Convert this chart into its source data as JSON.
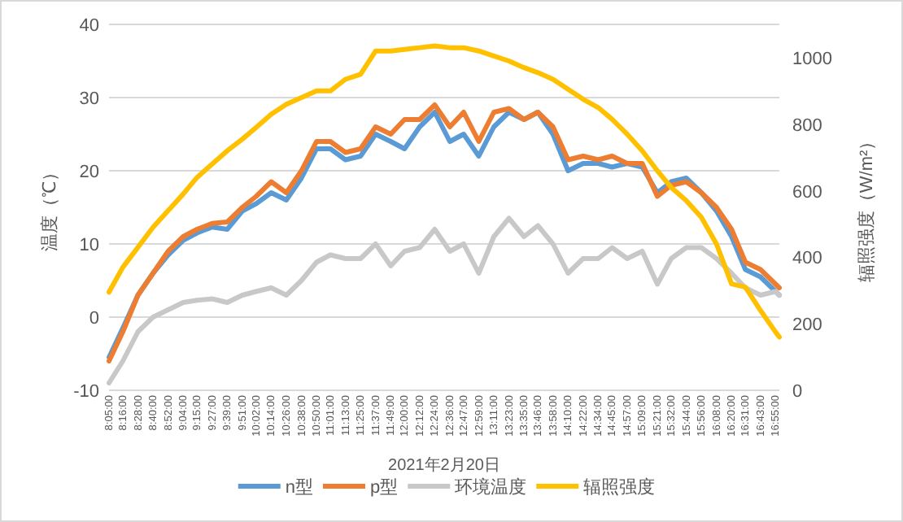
{
  "chart_data": {
    "type": "line",
    "xlabel": "2021年2月20日",
    "ylabel": "温度（℃）",
    "y2label": "辐照强度（W/m²）",
    "x": [
      8.0833,
      8.2667,
      8.4667,
      8.6667,
      8.8667,
      9.0667,
      9.25,
      9.45,
      9.65,
      9.85,
      10.0333,
      10.2333,
      10.4333,
      10.6333,
      10.8333,
      11.0167,
      11.2167,
      11.4167,
      11.6167,
      11.8167,
      12,
      12.2,
      12.4,
      12.6,
      12.7833,
      12.9833,
      13.1833,
      13.3833,
      13.5833,
      13.7667,
      13.9667,
      14.1667,
      14.3667,
      14.5667,
      14.75,
      14.95,
      15.15,
      15.35,
      15.5333,
      15.7333,
      15.9333,
      16.1333,
      16.3333,
      16.5167,
      16.7167,
      16.9167,
      16.9667
    ],
    "series": [
      {
        "name": "n型",
        "color": "#5b9bd5",
        "values": [
          -5.5,
          -1.5,
          3,
          6,
          8.5,
          10.5,
          11.5,
          12.3,
          12,
          14.5,
          15.5,
          17,
          16,
          19,
          23,
          23,
          21.5,
          22,
          25,
          24,
          23,
          26,
          28,
          24,
          25,
          22,
          26,
          28,
          27,
          28,
          25,
          20,
          21,
          21,
          20.5,
          21,
          20.5,
          17,
          18.5,
          19,
          17,
          14.5,
          11,
          6.5,
          5.5,
          3.5,
          3
        ]
      },
      {
        "name": "p型",
        "color": "#ed7d31",
        "values": [
          -6,
          -2,
          3,
          6,
          9,
          11,
          12,
          12.8,
          13,
          15,
          16.5,
          18.5,
          17,
          20,
          24,
          24,
          22.5,
          23,
          26,
          25,
          27,
          27,
          29,
          26,
          28,
          24,
          28,
          28.5,
          27,
          28,
          26,
          21.5,
          22,
          21.5,
          22,
          21,
          21,
          16.5,
          18,
          18.5,
          17,
          15,
          12,
          7.5,
          6.5,
          4.5,
          4
        ]
      },
      {
        "name": "环境温度",
        "color": "#c8c8c8",
        "values": [
          -9,
          -6,
          -2,
          0,
          1,
          2,
          2.3,
          2.5,
          2,
          3,
          3.5,
          4,
          3,
          5,
          7.5,
          8.5,
          8,
          8,
          10,
          7,
          9,
          9.5,
          12,
          9,
          10,
          6,
          11,
          13.5,
          11,
          12.5,
          10,
          6,
          8,
          8,
          9.5,
          8,
          9,
          4.5,
          8,
          9.5,
          9.5,
          8,
          6,
          4,
          3,
          3.5,
          3
        ]
      },
      {
        "name": "辐照强度",
        "color": "#ffc000",
        "axis": "y2",
        "values": [
          295,
          370,
          430,
          490,
          540,
          590,
          640,
          680,
          720,
          755,
          790,
          830,
          860,
          880,
          900,
          900,
          935,
          950,
          1020,
          1020,
          1025,
          1030,
          1035,
          1030,
          1030,
          1020,
          1005,
          990,
          970,
          955,
          935,
          905,
          875,
          850,
          815,
          770,
          720,
          660,
          610,
          570,
          520,
          440,
          320,
          310,
          240,
          175,
          160
        ]
      }
    ],
    "xlim": [
      8.0833,
      16.9667
    ],
    "xticks": [
      {
        "value": 8.0833,
        "label": "8:05:00"
      },
      {
        "value": 8.2667,
        "label": "8:16:00"
      },
      {
        "value": 8.4667,
        "label": "8:28:00"
      },
      {
        "value": 8.6667,
        "label": "8:40:00"
      },
      {
        "value": 8.8667,
        "label": "8:52:00"
      },
      {
        "value": 9.0667,
        "label": "9:04:00"
      },
      {
        "value": 9.25,
        "label": "9:15:00"
      },
      {
        "value": 9.45,
        "label": "9:27:00"
      },
      {
        "value": 9.65,
        "label": "9:39:00"
      },
      {
        "value": 9.85,
        "label": "9:51:00"
      },
      {
        "value": 10.0333,
        "label": "10:02:00"
      },
      {
        "value": 10.2333,
        "label": "10:14:00"
      },
      {
        "value": 10.4333,
        "label": "10:26:00"
      },
      {
        "value": 10.6333,
        "label": "10:38:00"
      },
      {
        "value": 10.8333,
        "label": "10:50:00"
      },
      {
        "value": 11.0167,
        "label": "11:01:00"
      },
      {
        "value": 11.2167,
        "label": "11:13:00"
      },
      {
        "value": 11.4167,
        "label": "11:25:00"
      },
      {
        "value": 11.6167,
        "label": "11:37:00"
      },
      {
        "value": 11.8167,
        "label": "11:49:00"
      },
      {
        "value": 12,
        "label": "12:00:00"
      },
      {
        "value": 12.2,
        "label": "12:12:00"
      },
      {
        "value": 12.4,
        "label": "12:24:00"
      },
      {
        "value": 12.6,
        "label": "12:36:00"
      },
      {
        "value": 12.7833,
        "label": "12:47:00"
      },
      {
        "value": 12.9833,
        "label": "12:59:00"
      },
      {
        "value": 13.1833,
        "label": "13:11:00"
      },
      {
        "value": 13.3833,
        "label": "13:23:00"
      },
      {
        "value": 13.5833,
        "label": "13:35:00"
      },
      {
        "value": 13.7667,
        "label": "13:46:00"
      },
      {
        "value": 13.9667,
        "label": "13:58:00"
      },
      {
        "value": 14.1667,
        "label": "14:10:00"
      },
      {
        "value": 14.3667,
        "label": "14:22:00"
      },
      {
        "value": 14.5667,
        "label": "14:34:00"
      },
      {
        "value": 14.75,
        "label": "14:45:00"
      },
      {
        "value": 14.95,
        "label": "14:57:00"
      },
      {
        "value": 15.15,
        "label": "15:09:00"
      },
      {
        "value": 15.35,
        "label": "15:21:00"
      },
      {
        "value": 15.5333,
        "label": "15:32:00"
      },
      {
        "value": 15.7333,
        "label": "15:44:00"
      },
      {
        "value": 15.9333,
        "label": "15:56:00"
      },
      {
        "value": 16.1333,
        "label": "16:08:00"
      },
      {
        "value": 16.3333,
        "label": "16:20:00"
      },
      {
        "value": 16.5167,
        "label": "16:31:00"
      },
      {
        "value": 16.7167,
        "label": "16:43:00"
      },
      {
        "value": 16.9167,
        "label": "16:55:00"
      }
    ],
    "ylim": [
      -10,
      40
    ],
    "yticks": [
      -10,
      0,
      10,
      20,
      30,
      40
    ],
    "y2lim": [
      0,
      1100
    ],
    "y2ticks": [
      0,
      200,
      400,
      600,
      800,
      1000
    ],
    "grid": "y",
    "legend": "bottom",
    "marker": "none",
    "line_style": "solid"
  }
}
